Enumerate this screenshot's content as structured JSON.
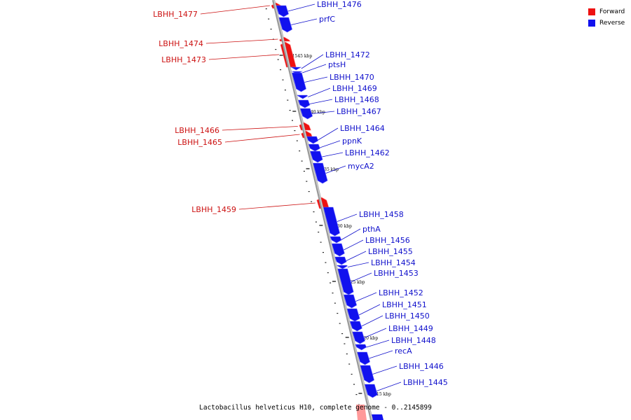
{
  "caption": "Lactobacillus helveticus H10, complete genome - 0..2145899",
  "legend": [
    {
      "label": "Forward",
      "color": "#ee1111"
    },
    {
      "label": "Reverse",
      "color": "#1111ee"
    }
  ],
  "colors": {
    "forward": "#ee1111",
    "reverse": "#1111ee",
    "forward_label": "#cc1111",
    "reverse_label": "#1111cc",
    "backbone": "#888888"
  },
  "scale_ticks": [
    "1545 kbp",
    "1540 kbp",
    "1535 kbp",
    "1530 kbp",
    "1525 kbp",
    "1520 kbp",
    "1515 kbp"
  ],
  "genes": [
    {
      "name": "LBHH_1477",
      "strand": "forward"
    },
    {
      "name": "LBHH_1476",
      "strand": "reverse"
    },
    {
      "name": "prfC",
      "strand": "reverse"
    },
    {
      "name": "LBHH_1474",
      "strand": "forward"
    },
    {
      "name": "LBHH_1473",
      "strand": "forward"
    },
    {
      "name": "LBHH_1472",
      "strand": "reverse"
    },
    {
      "name": "ptsH",
      "strand": "reverse"
    },
    {
      "name": "LBHH_1470",
      "strand": "reverse"
    },
    {
      "name": "LBHH_1469",
      "strand": "reverse"
    },
    {
      "name": "LBHH_1468",
      "strand": "reverse"
    },
    {
      "name": "LBHH_1467",
      "strand": "reverse"
    },
    {
      "name": "LBHH_1466",
      "strand": "forward"
    },
    {
      "name": "LBHH_1465",
      "strand": "forward"
    },
    {
      "name": "LBHH_1464",
      "strand": "reverse"
    },
    {
      "name": "ppnK",
      "strand": "reverse"
    },
    {
      "name": "LBHH_1462",
      "strand": "reverse"
    },
    {
      "name": "mycA2",
      "strand": "reverse"
    },
    {
      "name": "LBHH_1459",
      "strand": "forward"
    },
    {
      "name": "LBHH_1458",
      "strand": "reverse"
    },
    {
      "name": "pthA",
      "strand": "reverse"
    },
    {
      "name": "LBHH_1456",
      "strand": "reverse"
    },
    {
      "name": "LBHH_1455",
      "strand": "reverse"
    },
    {
      "name": "LBHH_1454",
      "strand": "reverse"
    },
    {
      "name": "LBHH_1453",
      "strand": "reverse"
    },
    {
      "name": "LBHH_1452",
      "strand": "reverse"
    },
    {
      "name": "LBHH_1451",
      "strand": "reverse"
    },
    {
      "name": "LBHH_1450",
      "strand": "reverse"
    },
    {
      "name": "LBHH_1449",
      "strand": "reverse"
    },
    {
      "name": "LBHH_1448",
      "strand": "reverse"
    },
    {
      "name": "recA",
      "strand": "reverse"
    },
    {
      "name": "LBHH_1446",
      "strand": "reverse"
    },
    {
      "name": "LBHH_1445",
      "strand": "reverse"
    }
  ]
}
